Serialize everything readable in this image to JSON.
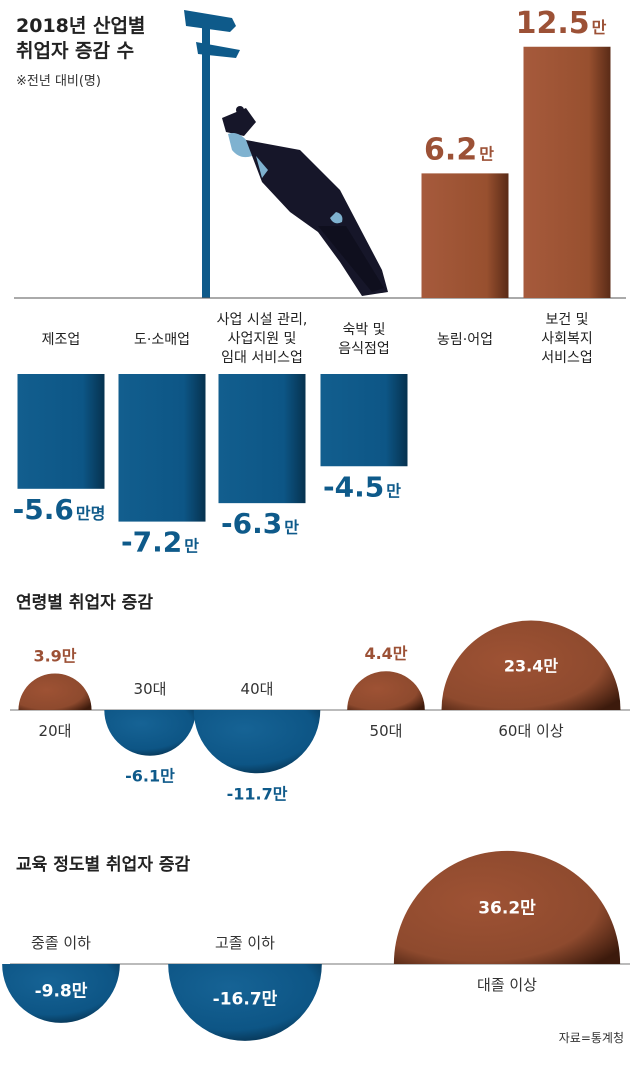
{
  "title": {
    "line1": "2018년 산업별",
    "line2": "취업자 증감 수",
    "note": "※전년 대비(명)"
  },
  "colors": {
    "positive": "#9c5136",
    "negative": "#0e5a8a",
    "positive_text": "#9c5136",
    "negative_text": "#0e5a8a"
  },
  "chart_data": [
    {
      "type": "bar",
      "title": "2018년 산업별 취업자 증감 수",
      "note": "※전년 대비(명)",
      "categories": [
        [
          "제조업"
        ],
        [
          "도·소매업"
        ],
        [
          "사업 시설 관리,",
          "사업지원 및",
          "임대 서비스업"
        ],
        [
          "숙박 및",
          "음식점업"
        ],
        [
          "농림·어업"
        ],
        [
          "보건 및",
          "사회복지",
          "서비스업"
        ]
      ],
      "values": [
        -5.6,
        -7.2,
        -6.3,
        -4.5,
        6.2,
        12.5
      ],
      "labels": [
        "-5.6",
        "-7.2",
        "-6.3",
        "-4.5",
        "6.2",
        "12.5"
      ],
      "units": [
        "만명",
        "만",
        "만",
        "만",
        "만",
        "만"
      ]
    },
    {
      "type": "bubble",
      "title": "연령별 취업자 증감",
      "categories": [
        "20대",
        "30대",
        "40대",
        "50대",
        "60대 이상"
      ],
      "values": [
        3.9,
        -6.1,
        -11.7,
        4.4,
        23.4
      ],
      "labels": [
        "3.9만",
        "-6.1만",
        "-11.7만",
        "4.4만",
        "23.4만"
      ]
    },
    {
      "type": "bubble",
      "title": "교육 정도별 취업자 증감",
      "categories": [
        "중졸 이하",
        "고졸 이하",
        "대졸 이상"
      ],
      "values": [
        -9.8,
        -16.7,
        36.2
      ],
      "labels": [
        "-9.8만",
        "-16.7만",
        "36.2만"
      ]
    }
  ],
  "source": "자료=통계청"
}
